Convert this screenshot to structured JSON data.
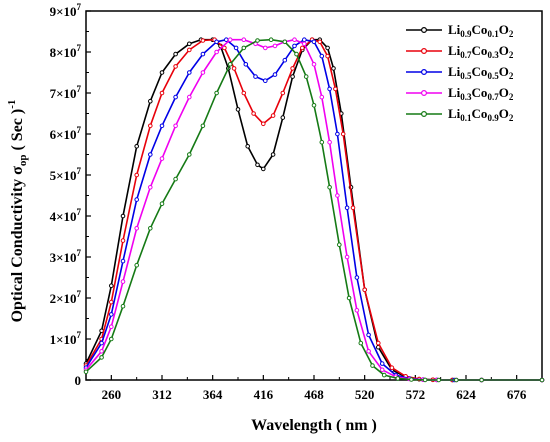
{
  "chart_data": {
    "type": "line",
    "xlabel": "Wavelength ( nm )",
    "ylabel": "Optical Conductivity σop ( Sec )-1",
    "ylabel_parts": {
      "main": "Optical Conductivity σ",
      "sub": "op",
      "paren": " ( Sec )",
      "sup": "-1"
    },
    "xlim": [
      234,
      702
    ],
    "ylim": [
      0,
      90000000
    ],
    "x_ticks": [
      260,
      312,
      364,
      416,
      468,
      520,
      572,
      624,
      676
    ],
    "y_ticks": [
      {
        "value": 0,
        "mant": "0",
        "exp": ""
      },
      {
        "value": 10000000,
        "mant": "1×10",
        "exp": "7"
      },
      {
        "value": 20000000,
        "mant": "2×10",
        "exp": "7"
      },
      {
        "value": 30000000,
        "mant": "3×10",
        "exp": "7"
      },
      {
        "value": 40000000,
        "mant": "4×10",
        "exp": "7"
      },
      {
        "value": 50000000,
        "mant": "5×10",
        "exp": "7"
      },
      {
        "value": 60000000,
        "mant": "6×10",
        "exp": "7"
      },
      {
        "value": 70000000,
        "mant": "7×10",
        "exp": "7"
      },
      {
        "value": 80000000,
        "mant": "8×10",
        "exp": "7"
      },
      {
        "value": 90000000,
        "mant": "9×10",
        "exp": "7"
      }
    ],
    "legend_position": "top-right",
    "series": [
      {
        "name": "Li0.9Co0.1O2",
        "legend_parts": [
          [
            "Li",
            ""
          ],
          [
            "0.9",
            "sub"
          ],
          [
            "Co",
            ""
          ],
          [
            "0.1",
            "sub"
          ],
          [
            "O",
            ""
          ],
          [
            "2",
            "sub"
          ]
        ],
        "color": "#000000",
        "x": [
          234,
          250,
          260,
          272,
          286,
          300,
          312,
          326,
          340,
          352,
          364,
          372,
          380,
          390,
          400,
          410,
          416,
          426,
          436,
          446,
          456,
          466,
          474,
          482,
          488,
          496,
          506,
          520,
          534,
          548,
          562,
          576,
          590,
          610,
          640,
          702
        ],
        "y": [
          4000000,
          12000000,
          23000000,
          40000000,
          57000000,
          68000000,
          75000000,
          79500000,
          82000000,
          83000000,
          83000000,
          81500000,
          76000000,
          66000000,
          57000000,
          52500000,
          51500000,
          55000000,
          64000000,
          74000000,
          80500000,
          83000000,
          83000000,
          81000000,
          76000000,
          65000000,
          47000000,
          22000000,
          8000000,
          2500000,
          700000,
          200000,
          50000,
          0,
          0,
          0
        ]
      },
      {
        "name": "Li0.7Co0.3O2",
        "legend_parts": [
          [
            "Li",
            ""
          ],
          [
            "0.7",
            "sub"
          ],
          [
            "Co",
            ""
          ],
          [
            "0.3",
            "sub"
          ],
          [
            "O",
            ""
          ],
          [
            "2",
            "sub"
          ]
        ],
        "color": "#e8000b",
        "x": [
          234,
          250,
          260,
          272,
          286,
          300,
          312,
          326,
          340,
          354,
          366,
          376,
          386,
          396,
          406,
          416,
          426,
          436,
          446,
          456,
          466,
          474,
          482,
          490,
          498,
          508,
          520,
          534,
          548,
          562,
          576,
          590,
          610,
          640,
          702
        ],
        "y": [
          3500000,
          10000000,
          19000000,
          34000000,
          50000000,
          62000000,
          70000000,
          76500000,
          80500000,
          82800000,
          83000000,
          81000000,
          76000000,
          70000000,
          65000000,
          62500000,
          64500000,
          70000000,
          76000000,
          81000000,
          83000000,
          82500000,
          79000000,
          71000000,
          60000000,
          42000000,
          22000000,
          9000000,
          3000000,
          900000,
          250000,
          60000,
          0,
          0,
          0
        ]
      },
      {
        "name": "Li0.5Co0.5O2",
        "legend_parts": [
          [
            "Li",
            ""
          ],
          [
            "0.5",
            "sub"
          ],
          [
            "Co",
            ""
          ],
          [
            "0.5",
            "sub"
          ],
          [
            "O",
            ""
          ],
          [
            "2",
            "sub"
          ]
        ],
        "color": "#0000e6",
        "x": [
          234,
          250,
          260,
          272,
          286,
          300,
          312,
          326,
          340,
          354,
          368,
          378,
          388,
          398,
          408,
          418,
          428,
          438,
          448,
          458,
          468,
          476,
          484,
          492,
          502,
          512,
          524,
          538,
          552,
          566,
          580,
          594,
          612,
          640,
          702
        ],
        "y": [
          3000000,
          9000000,
          16000000,
          29000000,
          44000000,
          55000000,
          62000000,
          69000000,
          75000000,
          79500000,
          82500000,
          83000000,
          81000000,
          77000000,
          74000000,
          73000000,
          74500000,
          78000000,
          81500000,
          83000000,
          82500000,
          79000000,
          71000000,
          60000000,
          42000000,
          25000000,
          11000000,
          4000000,
          1200000,
          350000,
          90000,
          20000,
          0,
          0,
          0
        ]
      },
      {
        "name": "Li0.3Co0.7O2",
        "legend_parts": [
          [
            "Li",
            ""
          ],
          [
            "0.3",
            "sub"
          ],
          [
            "Co",
            ""
          ],
          [
            "0.7",
            "sub"
          ],
          [
            "O",
            ""
          ],
          [
            "2",
            "sub"
          ]
        ],
        "color": "#f000f0",
        "x": [
          234,
          250,
          260,
          272,
          286,
          300,
          312,
          326,
          340,
          354,
          368,
          382,
          396,
          408,
          418,
          428,
          438,
          448,
          458,
          468,
          476,
          484,
          492,
          502,
          512,
          524,
          538,
          552,
          566,
          580,
          594,
          614,
          640,
          702
        ],
        "y": [
          2500000,
          7000000,
          13000000,
          24000000,
          37000000,
          47000000,
          54000000,
          62000000,
          69000000,
          75000000,
          80000000,
          83000000,
          83000000,
          82000000,
          81000000,
          81500000,
          82500000,
          83000000,
          82000000,
          77000000,
          69000000,
          58000000,
          45000000,
          30000000,
          17000000,
          7000000,
          2500000,
          800000,
          250000,
          70000,
          15000,
          0,
          0,
          0
        ]
      },
      {
        "name": "Li0.1Co0.9O2",
        "legend_parts": [
          [
            "Li",
            ""
          ],
          [
            "0.1",
            "sub"
          ],
          [
            "Co",
            ""
          ],
          [
            "0.9",
            "sub"
          ],
          [
            "O",
            ""
          ],
          [
            "2",
            "sub"
          ]
        ],
        "color": "#157a15",
        "x": [
          234,
          250,
          260,
          272,
          286,
          300,
          312,
          326,
          340,
          354,
          368,
          382,
          396,
          410,
          424,
          438,
          450,
          460,
          468,
          476,
          484,
          494,
          504,
          516,
          528,
          540,
          554,
          568,
          582,
          596,
          614,
          640,
          702
        ],
        "y": [
          2000000,
          5500000,
          10000000,
          18000000,
          28000000,
          37000000,
          43000000,
          49000000,
          55000000,
          62000000,
          70000000,
          77000000,
          81000000,
          82800000,
          83000000,
          82500000,
          79500000,
          74000000,
          67000000,
          58000000,
          47000000,
          33000000,
          20000000,
          9000000,
          3500000,
          1200000,
          400000,
          120000,
          30000,
          5000,
          0,
          0,
          0
        ]
      }
    ]
  }
}
